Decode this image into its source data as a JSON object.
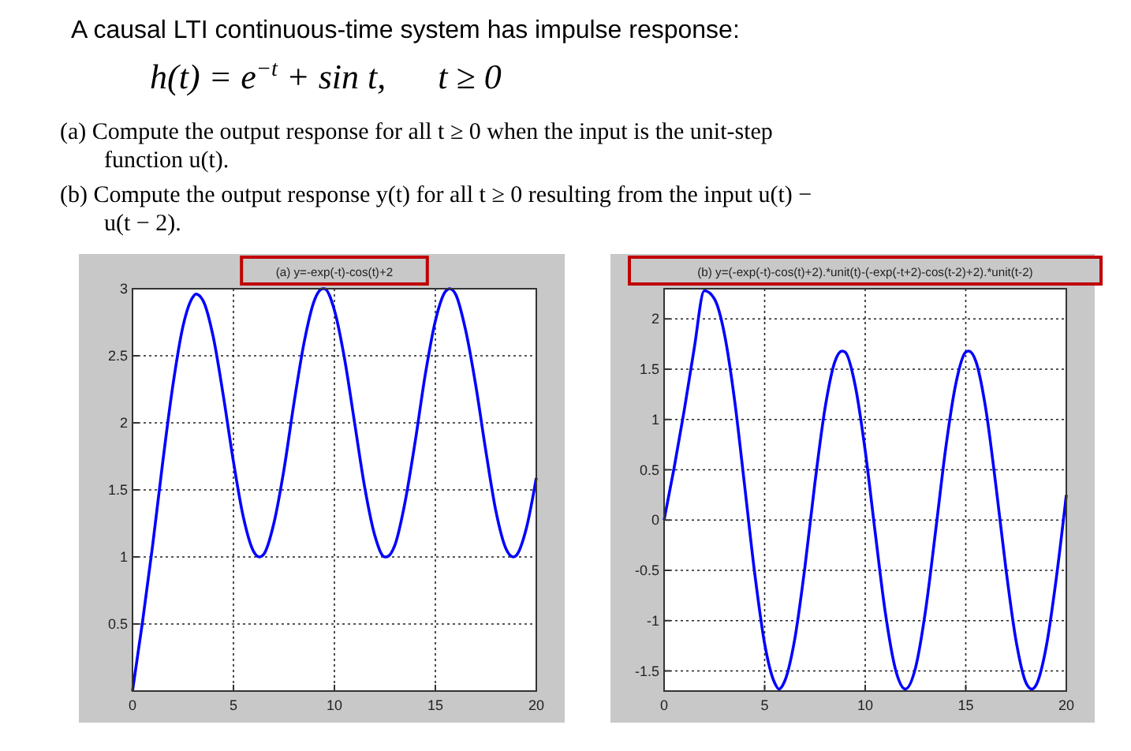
{
  "chart_data": [
    {
      "type": "other",
      "title": "A causal LTI continuous-time system has impulse response:",
      "subtitle": "h(t) = e$^{−t}$ + sin t,      t ≥ 0",
      "annotations": [
        "(a) Compute the output response for all t ≥ 0 when the input is the unit-step function u(t).",
        "(b) Compute the output response y(t) for all t ≥ 0 resulting from the input u(t) − u(t − 2)."
      ]
    },
    {
      "type": "line",
      "title": "(a) y=-exp(-t)-cos(t)+2",
      "x": [
        0,
        0.5,
        1,
        1.5,
        2,
        2.5,
        3,
        3.14,
        3.5,
        4,
        4.5,
        5,
        5.5,
        6,
        6.28,
        6.5,
        7,
        7.5,
        8,
        8.5,
        9,
        9.42,
        9.5,
        10,
        10.5,
        11,
        11.5,
        12,
        12.5,
        12.57,
        13,
        13.5,
        14,
        14.5,
        15,
        15.5,
        15.71,
        16,
        16.5,
        17,
        17.5,
        18,
        18.5,
        18.85,
        19,
        19.5,
        20
      ],
      "series": [
        {
          "color": "#0000ff",
          "values": [
            0,
            0.52,
            1.09,
            1.71,
            2.28,
            2.72,
            2.94,
            2.96,
            2.91,
            2.64,
            2.2,
            1.71,
            1.29,
            1.04,
            1.0,
            1.02,
            1.25,
            1.65,
            2.15,
            2.6,
            2.91,
            3.0,
            3.0,
            2.84,
            2.48,
            2.0,
            1.52,
            1.16,
            1.0,
            1.0,
            1.09,
            1.41,
            1.86,
            2.36,
            2.76,
            2.98,
            3.0,
            2.96,
            2.69,
            2.28,
            1.79,
            1.34,
            1.06,
            1.0,
            1.01,
            1.21,
            1.59
          ]
        }
      ],
      "xlim": [
        0,
        20
      ],
      "xticks": [
        0,
        5,
        10,
        15,
        20
      ],
      "ylim": [
        0,
        3
      ],
      "yticks": [
        0.5,
        1,
        1.5,
        2,
        2.5,
        3
      ],
      "grid": true
    },
    {
      "type": "line",
      "title": "(b) y=(-exp(-t)-cos(t)+2).*unit(t)-(-exp(-t+2)-cos(t-2)+2).*unit(t-2)",
      "x": [
        0,
        0.5,
        1,
        1.5,
        2,
        2.5,
        3,
        3.5,
        4,
        4.5,
        5,
        5.5,
        5.71,
        6,
        6.5,
        7,
        7.5,
        8,
        8.5,
        8.85,
        9,
        9.5,
        10,
        10.5,
        11,
        11.5,
        12,
        12.5,
        13,
        13.5,
        14,
        14.5,
        15,
        15.14,
        15.5,
        16,
        16.5,
        17,
        17.5,
        18,
        18.28,
        18.5,
        19,
        19.5,
        20
      ],
      "series": [
        {
          "color": "#0000ff",
          "values": [
            0,
            0.52,
            1.09,
            1.71,
            2.28,
            2.2,
            1.85,
            1.2,
            0.35,
            -0.52,
            -1.23,
            -1.62,
            -1.68,
            -1.6,
            -1.18,
            -0.47,
            0.37,
            1.11,
            1.58,
            1.68,
            1.67,
            1.34,
            0.69,
            -0.13,
            -0.92,
            -1.48,
            -1.68,
            -1.47,
            -0.9,
            -0.11,
            0.71,
            1.35,
            1.67,
            1.68,
            1.58,
            1.1,
            0.34,
            -0.49,
            -1.2,
            -1.62,
            -1.68,
            -1.64,
            -1.26,
            -0.58,
            0.25
          ]
        }
      ],
      "xlim": [
        0,
        20
      ],
      "xticks": [
        0,
        5,
        10,
        15,
        20
      ],
      "ylim": [
        -1.7,
        2.3
      ],
      "yticks": [
        -1.5,
        -1,
        -0.5,
        0,
        0.5,
        1,
        1.5,
        2
      ],
      "grid": true
    }
  ]
}
